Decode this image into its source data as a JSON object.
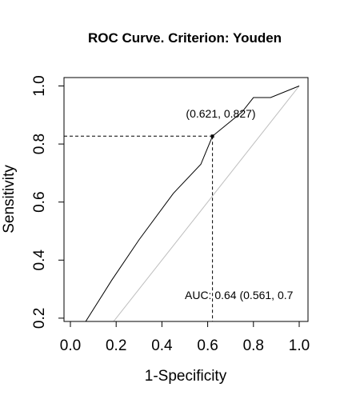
{
  "chart_data": {
    "type": "line",
    "title": "ROC Curve. Criterion: Youden",
    "xlabel": "1-Specificity",
    "ylabel": "Sensitivity",
    "xlim": [
      0,
      1
    ],
    "ylim": [
      0.04,
      1.02
    ],
    "x_ticks": [
      0.0,
      0.2,
      0.4,
      0.6,
      0.8,
      1.0
    ],
    "x_tick_labels": [
      "0.0",
      "0.2",
      "0.4",
      "0.6",
      "0.8",
      "1.0"
    ],
    "y_ticks": [
      0.2,
      0.4,
      0.6,
      0.8,
      1.0
    ],
    "y_tick_labels": [
      "0.2",
      "0.4",
      "0.6",
      "0.8",
      "1.0"
    ],
    "grid": false,
    "legend": "none",
    "series": [
      {
        "values_x": [
          0.0,
          0.06,
          0.18,
          0.3,
          0.45,
          0.57,
          0.621,
          0.75,
          0.8,
          0.875,
          1.0
        ],
        "values_y": [
          0.05,
          0.18,
          0.33,
          0.47,
          0.63,
          0.73,
          0.827,
          0.91,
          0.96,
          0.96,
          1.0
        ],
        "color": "#000000"
      }
    ],
    "reference_line": {
      "x": [
        0,
        1
      ],
      "y": [
        0,
        1
      ],
      "color": "#bebebe"
    },
    "optimal_point": {
      "x": 0.621,
      "y": 0.827,
      "label": "(0.621, 0.827)"
    },
    "auc_annotation": "AUC: 0.64 (0.561, 0.7"
  }
}
